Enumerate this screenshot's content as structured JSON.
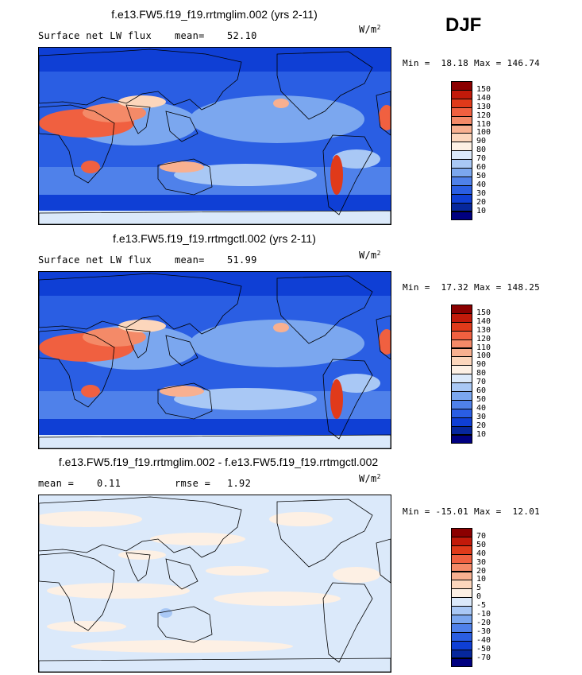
{
  "season": "DJF",
  "panels": [
    {
      "title": "f.e13.FW5.f19_f19.rrtmglim.002 (yrs 2-11)",
      "left_label": "Surface net LW flux",
      "stat1_label": "mean=",
      "stat1_value": "52.10",
      "stat2_label": "",
      "stat2_value": "",
      "units": "W/m",
      "units_exp": "2",
      "minmax": "Min =  18.18 Max = 146.74",
      "colorbar": {
        "labels": [
          "150",
          "140",
          "130",
          "120",
          "110",
          "100",
          "90",
          "80",
          "70",
          "60",
          "50",
          "40",
          "30",
          "20",
          "10"
        ],
        "colors": [
          "#8b0000",
          "#c21a0a",
          "#e03a1a",
          "#f06040",
          "#f48a68",
          "#f8b090",
          "#fcd6bc",
          "#fdf0e4",
          "#dbe9fa",
          "#a9c8f5",
          "#7ba7ef",
          "#4f81ea",
          "#2a5ee3",
          "#0f3fd5",
          "#06279c",
          "#000080"
        ]
      },
      "map_style": "flux"
    },
    {
      "title": "f.e13.FW5.f19_f19.rrtmgctl.002 (yrs 2-11)",
      "left_label": "Surface net LW flux",
      "stat1_label": "mean=",
      "stat1_value": "51.99",
      "stat2_label": "",
      "stat2_value": "",
      "units": "W/m",
      "units_exp": "2",
      "minmax": "Min =  17.32 Max = 148.25",
      "colorbar": {
        "labels": [
          "150",
          "140",
          "130",
          "120",
          "110",
          "100",
          "90",
          "80",
          "70",
          "60",
          "50",
          "40",
          "30",
          "20",
          "10"
        ],
        "colors": [
          "#8b0000",
          "#c21a0a",
          "#e03a1a",
          "#f06040",
          "#f48a68",
          "#f8b090",
          "#fcd6bc",
          "#fdf0e4",
          "#dbe9fa",
          "#a9c8f5",
          "#7ba7ef",
          "#4f81ea",
          "#2a5ee3",
          "#0f3fd5",
          "#06279c",
          "#000080"
        ]
      },
      "map_style": "flux"
    },
    {
      "title": "f.e13.FW5.f19_f19.rrtmglim.002 - f.e13.FW5.f19_f19.rrtmgctl.002",
      "left_label": "mean =",
      "stat1_label": "",
      "stat1_value": "0.11",
      "stat2_label": "rmse =",
      "stat2_value": "1.92",
      "units": "W/m",
      "units_exp": "2",
      "minmax": "Min = -15.01 Max =  12.01",
      "colorbar": {
        "labels": [
          "70",
          "50",
          "40",
          "30",
          "20",
          "10",
          "5",
          "0",
          "-5",
          "-10",
          "-20",
          "-30",
          "-40",
          "-50",
          "-70"
        ],
        "colors": [
          "#8b0000",
          "#c21a0a",
          "#e03a1a",
          "#f06040",
          "#f48a68",
          "#f8b090",
          "#fcd6bc",
          "#fdf0e4",
          "#dbe9fa",
          "#a9c8f5",
          "#7ba7ef",
          "#4f81ea",
          "#2a5ee3",
          "#0f3fd5",
          "#06279c",
          "#000080"
        ]
      },
      "map_style": "diff"
    }
  ],
  "chart_data": [
    {
      "type": "heatmap",
      "title": "f.e13.FW5.f19_f19.rrtmglim.002 (yrs 2-11)",
      "variable": "Surface net LW flux",
      "season": "DJF",
      "units": "W/m2",
      "mean": 52.1,
      "min": 18.18,
      "max": 146.74,
      "contour_levels": [
        10,
        20,
        30,
        40,
        50,
        60,
        70,
        80,
        90,
        100,
        110,
        120,
        130,
        140,
        150
      ]
    },
    {
      "type": "heatmap",
      "title": "f.e13.FW5.f19_f19.rrtmgctl.002 (yrs 2-11)",
      "variable": "Surface net LW flux",
      "season": "DJF",
      "units": "W/m2",
      "mean": 51.99,
      "min": 17.32,
      "max": 148.25,
      "contour_levels": [
        10,
        20,
        30,
        40,
        50,
        60,
        70,
        80,
        90,
        100,
        110,
        120,
        130,
        140,
        150
      ]
    },
    {
      "type": "heatmap",
      "title": "f.e13.FW5.f19_f19.rrtmglim.002 - f.e13.FW5.f19_f19.rrtmgctl.002",
      "variable": "Surface net LW flux difference",
      "season": "DJF",
      "units": "W/m2",
      "mean": 0.11,
      "rmse": 1.92,
      "min": -15.01,
      "max": 12.01,
      "contour_levels": [
        -70,
        -50,
        -40,
        -30,
        -20,
        -10,
        -5,
        0,
        5,
        10,
        20,
        30,
        40,
        50,
        70
      ]
    }
  ]
}
